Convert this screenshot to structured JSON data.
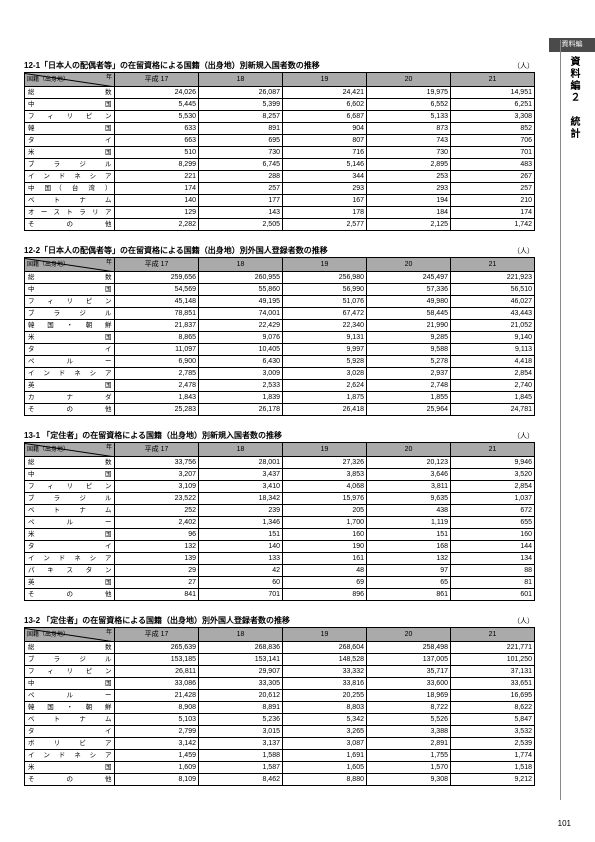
{
  "sideTab": "資料編",
  "sideLabel": "資料編２　統計",
  "pageNumber": "101",
  "cornerTop": "年",
  "cornerBottom": "国籍（出身地）",
  "yearHeaders": [
    "平成 17",
    "18",
    "19",
    "20",
    "21"
  ],
  "unit": "（人）",
  "tables": [
    {
      "title": "12-1「日本人の配偶者等」の在留資格による国籍（出身地）別新規入国者数の推移",
      "rows": [
        {
          "label": "総　　　　　数",
          "v": [
            "24,026",
            "26,087",
            "24,421",
            "19,975",
            "14,951"
          ]
        },
        {
          "label": "中　　　　　国",
          "v": [
            "5,445",
            "5,399",
            "6,602",
            "6,552",
            "6,251"
          ]
        },
        {
          "label": "フ　ィ　リ　ピ　ン",
          "v": [
            "5,530",
            "8,257",
            "6,687",
            "5,133",
            "3,308"
          ]
        },
        {
          "label": "韓　　　　　国",
          "v": [
            "633",
            "891",
            "904",
            "873",
            "852"
          ]
        },
        {
          "label": "タ　　　　　イ",
          "v": [
            "663",
            "695",
            "807",
            "743",
            "706"
          ]
        },
        {
          "label": "米　　　　　国",
          "v": [
            "510",
            "730",
            "716",
            "730",
            "701"
          ]
        },
        {
          "label": "ブ　ラ　ジ　ル",
          "v": [
            "8,299",
            "6,745",
            "5,146",
            "2,895",
            "483"
          ]
        },
        {
          "label": "イ ン ド ネ シ ア",
          "v": [
            "221",
            "288",
            "344",
            "253",
            "267"
          ]
        },
        {
          "label": "中 国（ 台 湾 ）",
          "v": [
            "174",
            "257",
            "293",
            "293",
            "257"
          ]
        },
        {
          "label": "ベ　ト　ナ　ム",
          "v": [
            "140",
            "177",
            "167",
            "194",
            "210"
          ]
        },
        {
          "label": "オーストラリア",
          "v": [
            "129",
            "143",
            "178",
            "184",
            "174"
          ]
        },
        {
          "label": "そ　　の　　他",
          "v": [
            "2,282",
            "2,505",
            "2,577",
            "2,125",
            "1,742"
          ]
        }
      ]
    },
    {
      "title": "12-2「日本人の配偶者等」の在留資格による国籍（出身地）別外国人登録者数の推移",
      "rows": [
        {
          "label": "総　　　　　数",
          "v": [
            "259,656",
            "260,955",
            "256,980",
            "245,497",
            "221,923"
          ]
        },
        {
          "label": "中　　　　　国",
          "v": [
            "54,569",
            "55,860",
            "56,990",
            "57,336",
            "56,510"
          ]
        },
        {
          "label": "フ　ィ　リ　ピ　ン",
          "v": [
            "45,148",
            "49,195",
            "51,076",
            "49,980",
            "46,027"
          ]
        },
        {
          "label": "ブ　ラ　ジ　ル",
          "v": [
            "78,851",
            "74,001",
            "67,472",
            "58,445",
            "43,443"
          ]
        },
        {
          "label": "韓 国 ・ 朝 鮮",
          "v": [
            "21,837",
            "22,429",
            "22,340",
            "21,990",
            "21,052"
          ]
        },
        {
          "label": "米　　　　　国",
          "v": [
            "8,865",
            "9,076",
            "9,131",
            "9,285",
            "9,140"
          ]
        },
        {
          "label": "タ　　　　　イ",
          "v": [
            "11,097",
            "10,405",
            "9,997",
            "9,588",
            "9,113"
          ]
        },
        {
          "label": "ペ　　ル　　ー",
          "v": [
            "6,900",
            "6,430",
            "5,928",
            "5,278",
            "4,418"
          ]
        },
        {
          "label": "イ ン ド ネ シ ア",
          "v": [
            "2,785",
            "3,009",
            "3,028",
            "2,937",
            "2,854"
          ]
        },
        {
          "label": "英　　　　　国",
          "v": [
            "2,478",
            "2,533",
            "2,624",
            "2,748",
            "2,740"
          ]
        },
        {
          "label": "カ　　ナ　　ダ",
          "v": [
            "1,843",
            "1,839",
            "1,875",
            "1,855",
            "1,845"
          ]
        },
        {
          "label": "そ　　の　　他",
          "v": [
            "25,283",
            "26,178",
            "26,418",
            "25,964",
            "24,781"
          ]
        }
      ]
    },
    {
      "title": "13-1 「定住者」の在留資格による国籍（出身地）別新規入国者数の推移",
      "rows": [
        {
          "label": "総　　　　　数",
          "v": [
            "33,756",
            "28,001",
            "27,326",
            "20,123",
            "9,946"
          ]
        },
        {
          "label": "中　　　　　国",
          "v": [
            "3,207",
            "3,437",
            "3,853",
            "3,646",
            "3,520"
          ]
        },
        {
          "label": "フ　ィ　リ　ピ　ン",
          "v": [
            "3,109",
            "3,410",
            "4,068",
            "3,811",
            "2,854"
          ]
        },
        {
          "label": "ブ　ラ　ジ　ル",
          "v": [
            "23,522",
            "18,342",
            "15,976",
            "9,635",
            "1,037"
          ]
        },
        {
          "label": "ベ　ト　ナ　ム",
          "v": [
            "252",
            "239",
            "205",
            "438",
            "672"
          ]
        },
        {
          "label": "ペ　　ル　　ー",
          "v": [
            "2,402",
            "1,346",
            "1,700",
            "1,119",
            "655"
          ]
        },
        {
          "label": "米　　　　　国",
          "v": [
            "96",
            "151",
            "160",
            "151",
            "160"
          ]
        },
        {
          "label": "タ　　　　　イ",
          "v": [
            "132",
            "140",
            "190",
            "168",
            "144"
          ]
        },
        {
          "label": "イ ン ド ネ シ ア",
          "v": [
            "139",
            "133",
            "161",
            "132",
            "134"
          ]
        },
        {
          "label": "パ キ ス タ ン",
          "v": [
            "29",
            "42",
            "48",
            "97",
            "88"
          ]
        },
        {
          "label": "英　　　　　国",
          "v": [
            "27",
            "60",
            "69",
            "65",
            "81"
          ]
        },
        {
          "label": "そ　　の　　他",
          "v": [
            "841",
            "701",
            "896",
            "861",
            "601"
          ]
        }
      ]
    },
    {
      "title": "13-2 「定住者」の在留資格による国籍（出身地）別外国人登録者数の推移",
      "rows": [
        {
          "label": "総　　　　　数",
          "v": [
            "265,639",
            "268,836",
            "268,604",
            "258,498",
            "221,771"
          ]
        },
        {
          "label": "ブ　ラ　ジ　ル",
          "v": [
            "153,185",
            "153,141",
            "148,528",
            "137,005",
            "101,250"
          ]
        },
        {
          "label": "フ　ィ　リ　ピ　ン",
          "v": [
            "26,811",
            "29,907",
            "33,332",
            "35,717",
            "37,131"
          ]
        },
        {
          "label": "中　　　　　国",
          "v": [
            "33,086",
            "33,305",
            "33,816",
            "33,600",
            "33,651"
          ]
        },
        {
          "label": "ペ　　ル　　ー",
          "v": [
            "21,428",
            "20,612",
            "20,255",
            "18,969",
            "16,695"
          ]
        },
        {
          "label": "韓 国 ・ 朝 鮮",
          "v": [
            "8,908",
            "8,891",
            "8,803",
            "8,722",
            "8,622"
          ]
        },
        {
          "label": "ベ　ト　ナ　ム",
          "v": [
            "5,103",
            "5,236",
            "5,342",
            "5,526",
            "5,847"
          ]
        },
        {
          "label": "タ　　　　　イ",
          "v": [
            "2,799",
            "3,015",
            "3,265",
            "3,388",
            "3,532"
          ]
        },
        {
          "label": "ボ　リ　ビ　ア",
          "v": [
            "3,142",
            "3,137",
            "3,087",
            "2,891",
            "2,539"
          ]
        },
        {
          "label": "イ ン ド ネ シ ア",
          "v": [
            "1,459",
            "1,588",
            "1,691",
            "1,755",
            "1,774"
          ]
        },
        {
          "label": "米　　　　　国",
          "v": [
            "1,609",
            "1,587",
            "1,605",
            "1,570",
            "1,518"
          ]
        },
        {
          "label": "そ　　の　　他",
          "v": [
            "8,109",
            "8,462",
            "8,880",
            "9,308",
            "9,212"
          ]
        }
      ]
    }
  ]
}
